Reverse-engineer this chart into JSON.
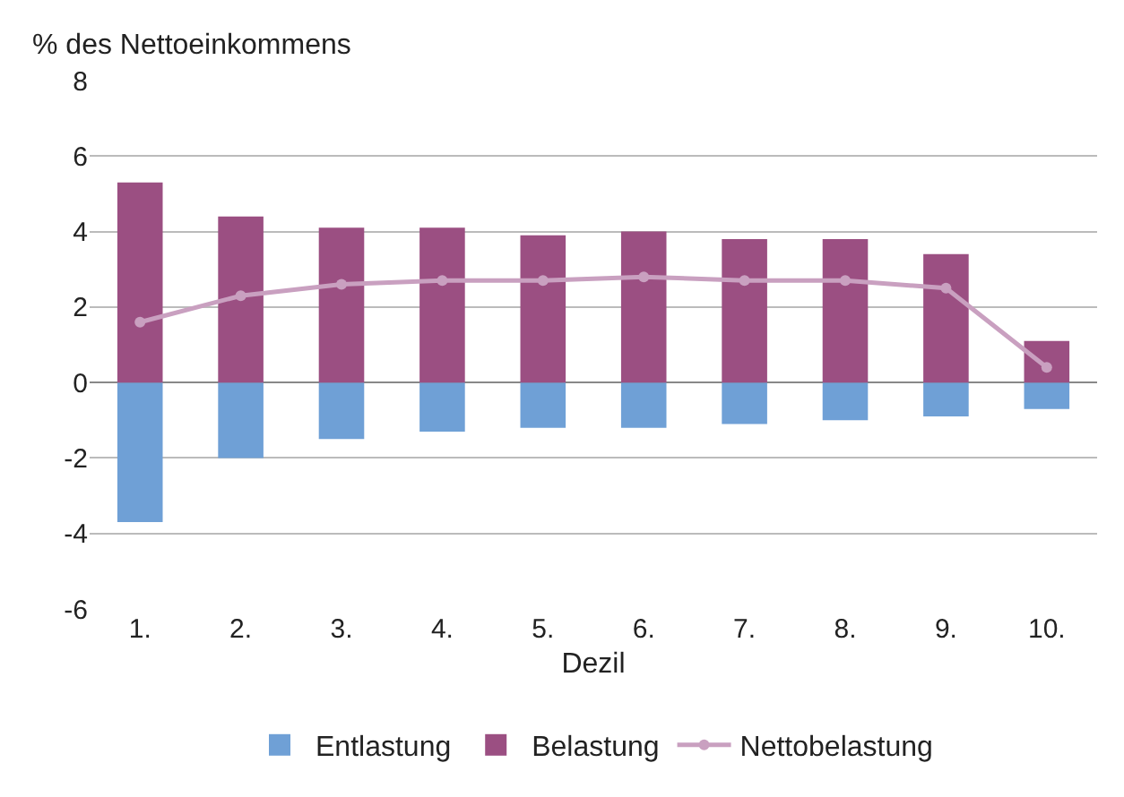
{
  "chart_data": {
    "type": "bar",
    "stacked": true,
    "xlabel": "Dezil",
    "ylabel": "% des Nettoeinkommens",
    "categories": [
      "1.",
      "2.",
      "3.",
      "4.",
      "5.",
      "6.",
      "7.",
      "8.",
      "9.",
      "10."
    ],
    "series": [
      {
        "name": "Entlastung",
        "color": "#6fa0d6",
        "values": [
          -3.7,
          -2.0,
          -1.5,
          -1.3,
          -1.2,
          -1.2,
          -1.1,
          -1.0,
          -0.9,
          -0.7
        ]
      },
      {
        "name": "Belastung",
        "color": "#9b4f82",
        "values": [
          5.3,
          4.4,
          4.1,
          4.1,
          3.9,
          4.0,
          3.8,
          3.8,
          3.4,
          1.1
        ]
      },
      {
        "name": "Nettobelastung",
        "type": "line",
        "color": "#c9a0c0",
        "values": [
          1.6,
          2.3,
          2.6,
          2.7,
          2.7,
          2.8,
          2.7,
          2.7,
          2.5,
          0.4
        ]
      }
    ],
    "ylim": [
      -6,
      8
    ],
    "yticks": [
      -6,
      -4,
      -2,
      0,
      2,
      4,
      6,
      8
    ],
    "grid": "y",
    "legend": "bottom",
    "marker": "circle"
  }
}
